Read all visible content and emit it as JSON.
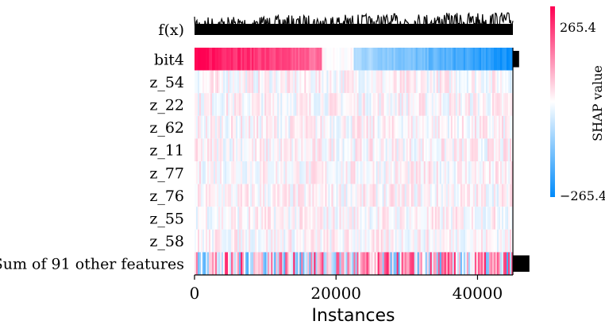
{
  "chart_data": {
    "type": "heatmap",
    "title": "",
    "fx_label": "f(x)",
    "features": [
      "bit4",
      "z_54",
      "z_22",
      "z_62",
      "z_11",
      "z_77",
      "z_76",
      "z_55",
      "z_58",
      "Sum of 91 other features"
    ],
    "importance": [
      0.06,
      0.0,
      0.0,
      0.0,
      0.0,
      0.0,
      0.0,
      0.0,
      0.0,
      0.16
    ],
    "xlabel": "Instances",
    "x_ticks": [
      0,
      20000,
      40000
    ],
    "xlim": [
      0,
      45000
    ],
    "colorbar": {
      "label": "SHAP value",
      "max": 265.4,
      "min": -265.4,
      "max_label": "265.4",
      "min_label": "−265.4",
      "high_color": "#ff0052",
      "low_color": "#008bfb"
    }
  }
}
